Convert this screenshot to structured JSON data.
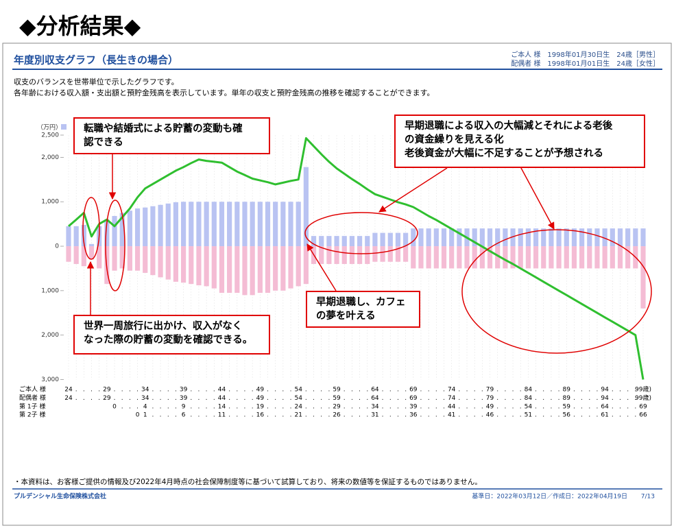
{
  "heading": "◆分析結果◆",
  "report": {
    "title": "年度別収支グラフ（長生きの場合）",
    "persons": [
      "ご本人 様　1998年01月30日生　24歳［男性］",
      "配偶者 様　1998年01月01日生　24歳［女性］"
    ],
    "description": [
      "収支のバランスを世帯単位で示したグラフです。",
      "各年齢における収入額・支出額と預貯金残高を表示しています。単年の収支と預貯金残高の推移を確認することができます。"
    ]
  },
  "chart_data": {
    "type": "bar_line",
    "unit_label": "（万円）",
    "ylim": [
      -3000,
      2500
    ],
    "yticks": [
      {
        "value": 2500,
        "label": "2,500"
      },
      {
        "value": 2000,
        "label": "2,000"
      },
      {
        "value": 1000,
        "label": "1,000"
      },
      0,
      {
        "value": -1000,
        "label": "1,000"
      },
      {
        "value": -2000,
        "label": "2,000"
      },
      {
        "value": -3000,
        "label": "3,000"
      }
    ],
    "series": [
      {
        "kind": "bar",
        "color": "#b9c3f2",
        "values": [
          450,
          450,
          480,
          50,
          450,
          600,
          680,
          750,
          800,
          850,
          870,
          900,
          930,
          960,
          990,
          1000,
          1000,
          1000,
          1000,
          1000,
          1000,
          1000,
          1000,
          1000,
          1000,
          1000,
          1000,
          1000,
          1000,
          1000,
          1000,
          1780,
          230,
          230,
          230,
          230,
          230,
          230,
          230,
          230,
          300,
          300,
          300,
          300,
          300,
          400,
          400,
          400,
          400,
          400,
          400,
          400,
          400,
          400,
          400,
          400,
          400,
          400,
          400,
          400,
          400,
          400,
          400,
          400,
          400,
          400,
          400,
          400,
          400,
          400,
          400,
          400,
          400,
          400,
          400,
          400
        ]
      },
      {
        "kind": "bar",
        "color": "#f4bcd4",
        "values": [
          -350,
          -400,
          -450,
          -300,
          -500,
          -850,
          -550,
          -500,
          -550,
          -550,
          -600,
          -650,
          -700,
          -750,
          -800,
          -820,
          -850,
          -880,
          -900,
          -950,
          -1050,
          -1050,
          -1050,
          -1100,
          -1100,
          -1050,
          -1050,
          -1000,
          -1000,
          -950,
          -900,
          -850,
          -400,
          -400,
          -400,
          -400,
          -400,
          -400,
          -400,
          -400,
          -350,
          -350,
          -350,
          -350,
          -350,
          -500,
          -500,
          -500,
          -500,
          -500,
          -500,
          -500,
          -500,
          -500,
          -500,
          -500,
          -500,
          -500,
          -500,
          -500,
          -500,
          -500,
          -500,
          -500,
          -500,
          -500,
          -500,
          -500,
          -500,
          -500,
          -500,
          -500,
          -500,
          -500,
          -500,
          -1400
        ]
      },
      {
        "kind": "line",
        "color": "#2fbf2f",
        "values": [
          450,
          600,
          750,
          220,
          500,
          600,
          450,
          650,
          850,
          1100,
          1300,
          1400,
          1500,
          1600,
          1700,
          1780,
          1870,
          1950,
          1920,
          1900,
          1880,
          1780,
          1680,
          1600,
          1520,
          1480,
          1440,
          1390,
          1430,
          1470,
          1500,
          2430,
          2250,
          2070,
          1900,
          1750,
          1630,
          1510,
          1400,
          1280,
          1170,
          1110,
          1050,
          990,
          940,
          880,
          780,
          680,
          590,
          490,
          390,
          290,
          190,
          90,
          -10,
          -110,
          -210,
          -310,
          -400,
          -500,
          -600,
          -700,
          -800,
          -900,
          -1000,
          -1100,
          -1200,
          -1300,
          -1400,
          -1500,
          -1600,
          -1700,
          -1800,
          -1900,
          -2000,
          -3000
        ]
      }
    ],
    "age_rows": [
      {
        "name": "ご本人 様",
        "cells": [
          "24",
          ".",
          ".",
          ".",
          ".",
          "29",
          ".",
          ".",
          ".",
          ".",
          "34",
          ".",
          ".",
          ".",
          ".",
          "39",
          ".",
          ".",
          ".",
          ".",
          "44",
          ".",
          ".",
          ".",
          ".",
          "49",
          ".",
          ".",
          ".",
          ".",
          "54",
          ".",
          ".",
          ".",
          ".",
          "59",
          ".",
          ".",
          ".",
          ".",
          "64",
          ".",
          ".",
          ".",
          ".",
          "69",
          ".",
          ".",
          ".",
          ".",
          "74",
          ".",
          ".",
          ".",
          ".",
          "79",
          ".",
          ".",
          ".",
          ".",
          "84",
          ".",
          ".",
          ".",
          ".",
          "89",
          ".",
          ".",
          ".",
          ".",
          "94",
          ".",
          ".",
          ".",
          ".",
          "99歳)"
        ]
      },
      {
        "name": "配偶者 様",
        "cells": [
          "24",
          ".",
          ".",
          ".",
          ".",
          "29",
          ".",
          ".",
          ".",
          ".",
          "34",
          ".",
          ".",
          ".",
          ".",
          "39",
          ".",
          ".",
          ".",
          ".",
          "44",
          ".",
          ".",
          ".",
          ".",
          "49",
          ".",
          ".",
          ".",
          ".",
          "54",
          ".",
          ".",
          ".",
          ".",
          "59",
          ".",
          ".",
          ".",
          ".",
          "64",
          ".",
          ".",
          ".",
          ".",
          "69",
          ".",
          ".",
          ".",
          ".",
          "74",
          ".",
          ".",
          ".",
          ".",
          "79",
          ".",
          ".",
          ".",
          ".",
          "84",
          ".",
          ".",
          ".",
          ".",
          "89",
          ".",
          ".",
          ".",
          ".",
          "94",
          ".",
          ".",
          ".",
          ".",
          "99歳)"
        ]
      },
      {
        "name": "第 1子 様",
        "cells": [
          null,
          null,
          null,
          null,
          null,
          null,
          "0",
          ".",
          ".",
          ".",
          "4",
          ".",
          ".",
          ".",
          ".",
          "9",
          ".",
          ".",
          ".",
          ".",
          "14",
          ".",
          ".",
          ".",
          ".",
          "19",
          ".",
          ".",
          ".",
          ".",
          "24",
          ".",
          ".",
          ".",
          ".",
          "29",
          ".",
          ".",
          ".",
          ".",
          "34",
          ".",
          ".",
          ".",
          ".",
          "39",
          ".",
          ".",
          ".",
          ".",
          "44",
          ".",
          ".",
          ".",
          ".",
          "49",
          ".",
          ".",
          ".",
          ".",
          "54",
          ".",
          ".",
          ".",
          ".",
          "59",
          ".",
          ".",
          ".",
          ".",
          "64",
          ".",
          ".",
          ".",
          ".",
          "69"
        ]
      },
      {
        "name": "第 2子 様",
        "cells": [
          null,
          null,
          null,
          null,
          null,
          null,
          null,
          null,
          null,
          "0",
          "1",
          ".",
          ".",
          ".",
          ".",
          "6",
          ".",
          ".",
          ".",
          ".",
          "11",
          ".",
          ".",
          ".",
          ".",
          "16",
          ".",
          ".",
          ".",
          ".",
          "21",
          ".",
          ".",
          ".",
          ".",
          "26",
          ".",
          ".",
          ".",
          ".",
          "31",
          ".",
          ".",
          ".",
          ".",
          "36",
          ".",
          ".",
          ".",
          ".",
          "41",
          ".",
          ".",
          ".",
          ".",
          "46",
          ".",
          ".",
          ".",
          ".",
          "51",
          ".",
          ".",
          ".",
          ".",
          "56",
          ".",
          ".",
          ".",
          ".",
          "61",
          ".",
          ".",
          ".",
          ".",
          "66"
        ]
      }
    ],
    "annotations": [
      {
        "lines": [
          "転職や結婚式による貯蓄の変動も確",
          "認できる"
        ]
      },
      {
        "lines": [
          "早期退職による収入の大幅減とそれによる老後",
          "の資金繰りを見える化",
          "老後資金が大幅に不足することが予想される"
        ]
      },
      {
        "lines": [
          "早期退職し、カフェ",
          "の夢を叶える"
        ]
      },
      {
        "lines": [
          "世界一周旅行に出かけ、収入がなく",
          "なった際の貯蓄の変動を確認できる。"
        ]
      }
    ]
  },
  "footer": {
    "note": "・本資料は、お客様ご提供の情報及び2022年4月時点の社会保障制度等に基づいて試算しており、将来の数値等を保証するものではありません。",
    "company": "プルデンシャル生命保険株式会社",
    "dates": "基準日：2022年03月12日／作成日：2022年04月19日",
    "page": "7/13"
  }
}
